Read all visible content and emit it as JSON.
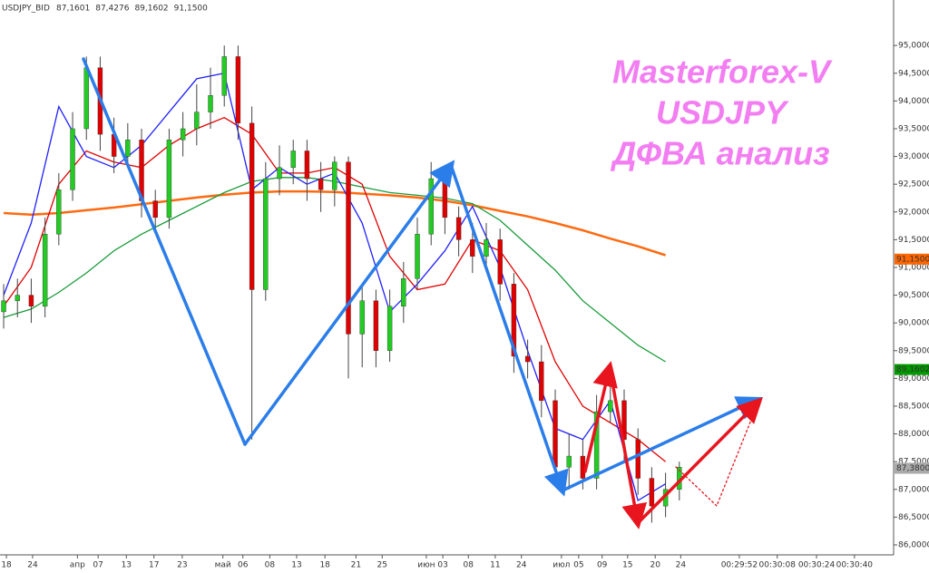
{
  "chart_data": {
    "type": "candlestick",
    "header": {
      "symbol": "USDJPY_BID",
      "values": [
        {
          "label": "87,1601",
          "color": "#0000ff"
        },
        {
          "label": "87,4276",
          "color": "#e00000"
        },
        {
          "label": "89,1602",
          "color": "#009900"
        },
        {
          "label": "91,1500",
          "color": "#ff6600"
        }
      ]
    },
    "annotations": [
      "Masterforex-V",
      "USDJPY",
      "ДФВА анализ"
    ],
    "xlim": [
      -0.53,
      129.08
    ],
    "ylim": [
      85.82,
      95.82
    ],
    "yticks": [
      {
        "value": 86,
        "label": "86,0000"
      },
      {
        "value": 86.5,
        "label": "86,5000"
      },
      {
        "value": 87,
        "label": "87,0000"
      },
      {
        "value": 87.5,
        "label": "87,5000"
      },
      {
        "value": 88,
        "label": "88,0000"
      },
      {
        "value": 88.5,
        "label": "88,5000"
      },
      {
        "value": 89,
        "label": "89,0000"
      },
      {
        "value": 89.5,
        "label": "89,5000"
      },
      {
        "value": 90,
        "label": "90,0000"
      },
      {
        "value": 90.5,
        "label": "90,5000"
      },
      {
        "value": 91,
        "label": "91,0000"
      },
      {
        "value": 91.5,
        "label": "91,5000"
      },
      {
        "value": 92,
        "label": "92,0000"
      },
      {
        "value": 92.5,
        "label": "92,5000"
      },
      {
        "value": 93,
        "label": "93,0000"
      },
      {
        "value": 93.5,
        "label": "93,5000"
      },
      {
        "value": 94,
        "label": "94,0000"
      },
      {
        "value": 94.5,
        "label": "94,5000"
      },
      {
        "value": 95,
        "label": "95,0000"
      }
    ],
    "xticks": [
      {
        "value": 0.4,
        "label": "18"
      },
      {
        "value": 4.2,
        "label": "24"
      },
      {
        "value": 10.7,
        "label": "апр"
      },
      {
        "value": 13.7,
        "label": "07"
      },
      {
        "value": 17.8,
        "label": "13"
      },
      {
        "value": 21.8,
        "label": "17"
      },
      {
        "value": 25.9,
        "label": "23"
      },
      {
        "value": 31.8,
        "label": "май"
      },
      {
        "value": 34.7,
        "label": "06"
      },
      {
        "value": 38.6,
        "label": "08"
      },
      {
        "value": 42.5,
        "label": "13"
      },
      {
        "value": 46.6,
        "label": "18"
      },
      {
        "value": 51.1,
        "label": "21"
      },
      {
        "value": 54.9,
        "label": "25"
      },
      {
        "value": 61.3,
        "label": "июн"
      },
      {
        "value": 63.7,
        "label": "03"
      },
      {
        "value": 67.4,
        "label": "08"
      },
      {
        "value": 71.3,
        "label": "11"
      },
      {
        "value": 75.1,
        "label": "24"
      },
      {
        "value": 80.9,
        "label": "июл"
      },
      {
        "value": 83.4,
        "label": "05"
      },
      {
        "value": 86.8,
        "label": "09"
      },
      {
        "value": 90.5,
        "label": "15"
      },
      {
        "value": 94.5,
        "label": "20"
      },
      {
        "value": 98.2,
        "label": "24"
      },
      {
        "value": 106.7,
        "label": "00:29:52"
      },
      {
        "value": 112.2,
        "label": "00:30:08"
      },
      {
        "value": 117.9,
        "label": "00:30:24"
      },
      {
        "value": 123.4,
        "label": "00:30:40"
      }
    ],
    "up_color": "#22cc22",
    "down_color": "#e00000",
    "candles": {
      "x": [
        0,
        2,
        4,
        6,
        8,
        10,
        12,
        14,
        16,
        18,
        20,
        22,
        24,
        26,
        28,
        30,
        32,
        34,
        36,
        38,
        40,
        42,
        44,
        46,
        48,
        50,
        52,
        54,
        56,
        58,
        60,
        62,
        64,
        66,
        68,
        70,
        72,
        74,
        76,
        78,
        80,
        82,
        84,
        86,
        88,
        90,
        92,
        94,
        96,
        98
      ],
      "open": [
        90.2,
        90.4,
        90.5,
        90.3,
        91.6,
        92.4,
        93.5,
        94.6,
        93.4,
        93.0,
        93.3,
        92.2,
        91.9,
        93.3,
        93.5,
        93.8,
        94.1,
        94.8,
        93.6,
        90.6,
        92.6,
        92.8,
        93.1,
        92.6,
        92.4,
        92.9,
        89.8,
        90.4,
        89.5,
        90.3,
        90.8,
        91.6,
        92.6,
        91.9,
        91.5,
        91.2,
        91.5,
        90.7,
        89.4,
        89.3,
        88.6,
        87.4,
        87.6,
        87.2,
        88.4,
        88.6,
        87.9,
        87.2,
        86.7,
        87.0
      ],
      "high": [
        90.7,
        90.8,
        90.8,
        91.9,
        92.7,
        93.8,
        94.8,
        94.8,
        93.7,
        93.6,
        93.5,
        92.4,
        93.5,
        93.8,
        94.3,
        94.6,
        95.0,
        95.0,
        93.9,
        92.9,
        93.2,
        93.3,
        93.3,
        92.9,
        93.0,
        93.0,
        90.7,
        90.6,
        90.6,
        91.1,
        91.9,
        92.9,
        92.8,
        92.1,
        91.8,
        91.8,
        91.7,
        90.9,
        89.7,
        89.6,
        88.8,
        88.0,
        87.9,
        88.7,
        88.9,
        88.8,
        88.1,
        87.4,
        87.3,
        87.5
      ],
      "low": [
        89.9,
        90.1,
        90.0,
        90.1,
        91.4,
        92.2,
        93.3,
        93.1,
        92.7,
        92.8,
        91.9,
        91.7,
        91.7,
        93.0,
        93.2,
        93.5,
        93.9,
        93.3,
        87.9,
        90.4,
        92.3,
        92.5,
        92.2,
        92.0,
        92.1,
        89.0,
        89.2,
        89.2,
        89.3,
        90.0,
        90.6,
        91.4,
        91.6,
        91.2,
        90.9,
        91.0,
        90.4,
        89.1,
        89.0,
        88.3,
        87.1,
        87.0,
        87.0,
        87.0,
        88.2,
        87.5,
        86.9,
        86.4,
        86.5,
        86.8
      ],
      "close": [
        90.4,
        90.5,
        90.3,
        91.6,
        92.4,
        93.5,
        94.6,
        93.4,
        93.0,
        93.3,
        92.2,
        91.9,
        93.3,
        93.5,
        93.8,
        94.1,
        94.8,
        93.6,
        90.6,
        92.6,
        92.8,
        93.1,
        92.6,
        92.4,
        92.9,
        89.8,
        90.4,
        89.5,
        90.3,
        90.8,
        91.6,
        92.6,
        91.9,
        91.5,
        91.2,
        91.5,
        90.7,
        89.4,
        89.3,
        88.6,
        87.4,
        87.6,
        87.2,
        88.4,
        88.6,
        87.9,
        87.2,
        86.7,
        87.0,
        87.4
      ]
    },
    "ma_x": [
      0,
      4,
      8,
      12,
      16,
      20,
      24,
      28,
      32,
      36,
      40,
      44,
      48,
      52,
      56,
      60,
      64,
      68,
      72,
      76,
      80,
      84,
      88,
      92,
      96
    ],
    "lines": [
      {
        "color": "#ff6a10",
        "values": [
          91.98,
          91.95,
          91.98,
          92.03,
          92.08,
          92.14,
          92.2,
          92.26,
          92.31,
          92.35,
          92.37,
          92.37,
          92.36,
          92.33,
          92.3,
          92.26,
          92.2,
          92.12,
          92.02,
          91.92,
          91.8,
          91.67,
          91.52,
          91.38,
          91.22
        ]
      },
      {
        "color": "#1a9a3a",
        "values": [
          90.1,
          90.25,
          90.55,
          90.9,
          91.3,
          91.6,
          91.85,
          92.1,
          92.35,
          92.55,
          92.62,
          92.62,
          92.55,
          92.45,
          92.35,
          92.3,
          92.25,
          92.15,
          91.85,
          91.4,
          90.95,
          90.4,
          90.0,
          89.6,
          89.3
        ]
      },
      {
        "color": "#e00000",
        "values": [
          90.3,
          91.0,
          92.5,
          93.1,
          92.9,
          92.8,
          93.2,
          93.5,
          93.7,
          93.4,
          92.7,
          92.7,
          92.8,
          92.5,
          91.2,
          90.6,
          90.7,
          91.5,
          91.3,
          90.6,
          89.3,
          88.5,
          88.2,
          87.9,
          87.5
        ]
      },
      {
        "color": "#2020ff",
        "values": [
          90.5,
          91.8,
          93.9,
          93.0,
          92.8,
          93.2,
          93.8,
          94.4,
          94.5,
          92.4,
          92.8,
          92.5,
          92.7,
          91.8,
          90.2,
          90.7,
          91.3,
          92.1,
          91.0,
          89.5,
          88.1,
          87.9,
          88.6,
          86.8,
          87.1
        ]
      }
    ],
    "price_tags": [
      {
        "value": 91.15,
        "label": "91,1500",
        "color": "#ff6600"
      },
      {
        "value": 89.1602,
        "label": "89,1602",
        "color": "#009900"
      },
      {
        "value": 87.38,
        "label": "87,3800",
        "color": "#aaaaaa"
      }
    ]
  }
}
